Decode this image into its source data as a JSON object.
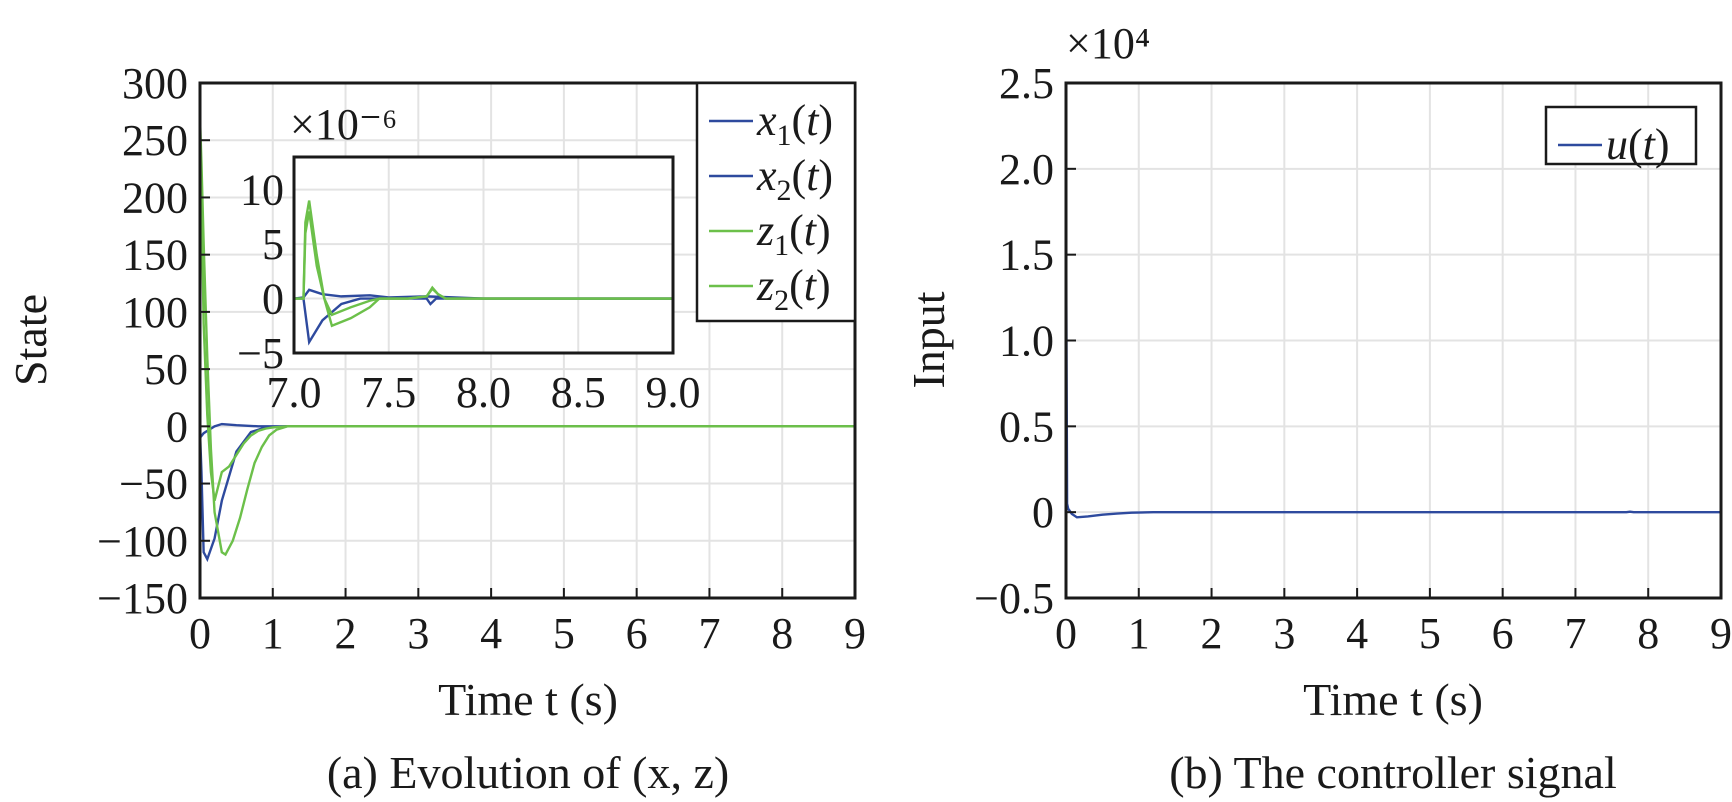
{
  "chart_data": [
    {
      "type": "line",
      "id": "a",
      "caption": "(a) Evolution of (x, z)",
      "xlabel": "Time t (s)",
      "ylabel": "State",
      "xlim": [
        0,
        9
      ],
      "ylim": [
        -150,
        300
      ],
      "xticks": [
        "0",
        "1",
        "2",
        "3",
        "4",
        "5",
        "6",
        "7",
        "8",
        "9"
      ],
      "yticks": [
        "300",
        "250",
        "200",
        "150",
        "100",
        "50",
        "0",
        "−50",
        "−100",
        "−150"
      ],
      "grid": true,
      "legend_position": "top-right",
      "series": [
        {
          "name": "x1(t)",
          "color": "#2e4a9e",
          "x": [
            0,
            0.02,
            0.05,
            0.1,
            0.2,
            0.3,
            0.5,
            0.7,
            0.9,
            1.2,
            9
          ],
          "y": [
            -5,
            -40,
            -110,
            -116,
            -98,
            -65,
            -22,
            -5,
            -1,
            0,
            0
          ]
        },
        {
          "name": "x2(t)",
          "color": "#2e4a9e",
          "x": [
            0,
            0.05,
            0.1,
            0.2,
            0.3,
            0.5,
            0.8,
            1.1,
            9
          ],
          "y": [
            -10,
            -6,
            -4,
            0,
            2,
            1,
            0,
            0,
            0
          ]
        },
        {
          "name": "z1(t)",
          "color": "#6cc04a",
          "x": [
            0,
            0.02,
            0.05,
            0.1,
            0.15,
            0.2,
            0.3,
            0.4,
            0.5,
            0.6,
            0.7,
            0.8,
            0.9,
            1.0,
            1.2,
            9
          ],
          "y": [
            260,
            200,
            90,
            10,
            -40,
            -65,
            -40,
            -35,
            -25,
            -15,
            -8,
            -4,
            -2,
            -1,
            0,
            0
          ]
        },
        {
          "name": "z2(t)",
          "color": "#6cc04a",
          "x": [
            0,
            0.02,
            0.05,
            0.1,
            0.15,
            0.2,
            0.3,
            0.35,
            0.45,
            0.55,
            0.65,
            0.75,
            0.85,
            0.95,
            1.05,
            1.2,
            9
          ],
          "y": [
            270,
            230,
            160,
            60,
            -20,
            -75,
            -110,
            -112,
            -100,
            -80,
            -55,
            -32,
            -18,
            -8,
            -3,
            0,
            0
          ]
        }
      ],
      "inset": {
        "multiplier": "×10⁻⁶",
        "xlim": [
          7.0,
          9.0
        ],
        "ylim": [
          -5,
          13
        ],
        "xticks": [
          "7.0",
          "7.5",
          "8.0",
          "8.5",
          "9.0"
        ],
        "xtick_values": [
          7.0,
          7.5,
          8.0,
          8.5,
          9.0
        ],
        "yticks": [
          "10",
          "5",
          "0",
          "−5"
        ],
        "ytick_values": [
          10,
          5,
          0,
          -5
        ],
        "series": [
          {
            "name": "x1(t)",
            "color": "#2e4a9e",
            "x": [
              7.0,
              7.05,
              7.08,
              7.15,
              7.25,
              7.35,
              7.5,
              7.7,
              7.72,
              7.75,
              7.8,
              9.0
            ],
            "y": [
              0,
              0,
              -4,
              -2,
              -0.5,
              0,
              0,
              0,
              -0.5,
              0,
              0,
              0
            ]
          },
          {
            "name": "x2(t)",
            "color": "#2e4a9e",
            "x": [
              7.0,
              7.05,
              7.08,
              7.15,
              7.25,
              7.4,
              7.5,
              7.7,
              8.0,
              9.0
            ],
            "y": [
              0,
              0.1,
              0.8,
              0.4,
              0.2,
              0.3,
              0.1,
              0.2,
              0,
              0
            ]
          },
          {
            "name": "z1(t)",
            "color": "#6cc04a",
            "x": [
              7.0,
              7.05,
              7.06,
              7.08,
              7.12,
              7.16,
              7.2,
              7.3,
              7.4,
              7.45,
              7.6,
              7.7,
              7.73,
              7.76,
              7.8,
              9.0
            ],
            "y": [
              0,
              0,
              7,
              9,
              4,
              0,
              -1.5,
              -0.8,
              -0.2,
              0,
              0,
              0.2,
              0.9,
              0.4,
              0,
              0
            ]
          },
          {
            "name": "z2(t)",
            "color": "#6cc04a",
            "x": [
              7.0,
              7.05,
              7.06,
              7.08,
              7.12,
              7.16,
              7.2,
              7.3,
              7.4,
              7.45,
              7.6,
              7.7,
              7.73,
              7.76,
              7.8,
              9.0
            ],
            "y": [
              0,
              0,
              6,
              8,
              3,
              0,
              -2.5,
              -1.8,
              -0.8,
              0,
              0,
              0.2,
              1.0,
              0.4,
              0,
              0
            ]
          }
        ]
      }
    },
    {
      "type": "line",
      "id": "b",
      "caption": "(b) The controller signal",
      "multiplier": "×10⁴",
      "xlabel": "Time t (s)",
      "ylabel": "Input",
      "xlim": [
        0,
        9
      ],
      "ylim": [
        -0.5,
        2.5
      ],
      "xticks": [
        "0",
        "1",
        "2",
        "3",
        "4",
        "5",
        "6",
        "7",
        "8",
        "9"
      ],
      "yticks": [
        "2.5",
        "2.0",
        "1.5",
        "1.0",
        "0.5",
        "0",
        "−0.5"
      ],
      "ytick_values": [
        2.5,
        2.0,
        1.5,
        1.0,
        0.5,
        0,
        -0.5
      ],
      "grid": true,
      "legend_position": "top-right",
      "series": [
        {
          "name": "u(t)",
          "color": "#2e4a9e",
          "x": [
            0,
            0.005,
            0.015,
            0.03,
            0.08,
            0.15,
            0.3,
            0.5,
            0.7,
            0.9,
            1.2,
            7.7,
            7.75,
            7.8,
            9
          ],
          "y": [
            2.5,
            1.2,
            0.05,
            0.02,
            -0.01,
            -0.03,
            -0.025,
            -0.015,
            -0.008,
            -0.003,
            0,
            0,
            0.003,
            0,
            0
          ]
        }
      ]
    }
  ]
}
